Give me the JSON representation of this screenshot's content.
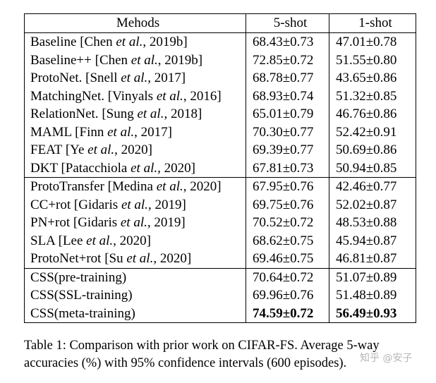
{
  "table": {
    "headers": [
      "Mehods",
      "5-shot",
      "1-shot"
    ],
    "groups": [
      [
        {
          "name": "Baseline",
          "cite_pre": "Chen",
          "cite_year": "2019b",
          "five": "68.43±0.73",
          "one": "47.01±0.78"
        },
        {
          "name": "Baseline++",
          "cite_pre": "Chen",
          "cite_year": "2019b",
          "five": "72.85±0.72",
          "one": "51.55±0.80"
        },
        {
          "name": "ProtoNet.",
          "cite_pre": "Snell",
          "cite_year": "2017",
          "five": "68.78±0.77",
          "one": "43.65±0.86"
        },
        {
          "name": "MatchingNet.",
          "cite_pre": "Vinyals",
          "cite_year": "2016",
          "five": "68.93±0.74",
          "one": "51.32±0.85"
        },
        {
          "name": "RelationNet.",
          "cite_pre": "Sung",
          "cite_year": "2018",
          "five": "65.01±0.79",
          "one": "46.76±0.86"
        },
        {
          "name": "MAML",
          "cite_pre": "Finn",
          "cite_year": "2017",
          "five": "70.30±0.77",
          "one": "52.42±0.91"
        },
        {
          "name": "FEAT",
          "cite_pre": "Ye",
          "cite_year": "2020",
          "five": "69.39±0.77",
          "one": "50.69±0.86"
        },
        {
          "name": "DKT",
          "cite_pre": "Patacchiola",
          "cite_year": "2020",
          "five": "67.81±0.73",
          "one": "50.94±0.85"
        }
      ],
      [
        {
          "name": "ProtoTransfer",
          "cite_pre": "Medina",
          "cite_year": "2020",
          "five": "67.95±0.76",
          "one": "42.46±0.77"
        },
        {
          "name": "CC+rot",
          "cite_pre": "Gidaris",
          "cite_year": "2019",
          "five": "69.75±0.76",
          "one": "52.02±0.87"
        },
        {
          "name": "PN+rot",
          "cite_pre": "Gidaris",
          "cite_year": "2019",
          "five": "70.52±0.72",
          "one": "48.53±0.88"
        },
        {
          "name": "SLA",
          "cite_pre": "Lee",
          "cite_year": "2020",
          "five": "68.62±0.75",
          "one": "45.94±0.87"
        },
        {
          "name": "ProtoNet+rot",
          "cite_pre": "Su",
          "cite_year": "2020",
          "five": "69.46±0.75",
          "one": "46.81±0.87"
        }
      ],
      [
        {
          "name": "CSS(pre-training)",
          "five": "70.64±0.72",
          "one": "51.07±0.89"
        },
        {
          "name": "CSS(SSL-training)",
          "five": "69.96±0.76",
          "one": "51.48±0.89"
        },
        {
          "name": "CSS(meta-training)",
          "five": "74.59±0.72",
          "one": "56.49±0.93",
          "bold": true
        }
      ]
    ],
    "etal": "et al."
  },
  "caption": "Table 1: Comparison with prior work on CIFAR-FS. Average 5-way accuracies (%) with 95% confidence intervals (600 episodes).",
  "watermark": "知乎 @安子"
}
